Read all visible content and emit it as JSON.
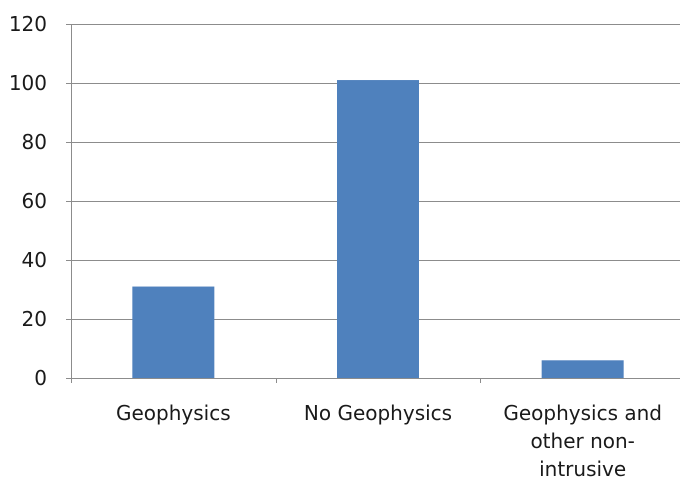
{
  "chart_data": {
    "type": "bar",
    "categories": [
      "Geophysics",
      "No Geophysics",
      "Geophysics and other non-intrusive"
    ],
    "category_label_lines": [
      [
        "Geophysics"
      ],
      [
        "No Geophysics"
      ],
      [
        "Geophysics and",
        "other non-",
        "intrusive"
      ]
    ],
    "values": [
      31,
      101,
      6
    ],
    "ylim": [
      0,
      120
    ],
    "yticks": [
      0,
      20,
      40,
      60,
      80,
      100,
      120
    ],
    "title": "",
    "xlabel": "",
    "ylabel": "",
    "grid": true,
    "legend": "none",
    "colors": {
      "bar": "#4f81bd",
      "grid": "#8c8c8c",
      "axis": "#8c8c8c",
      "text": "#1a1a1a"
    }
  }
}
